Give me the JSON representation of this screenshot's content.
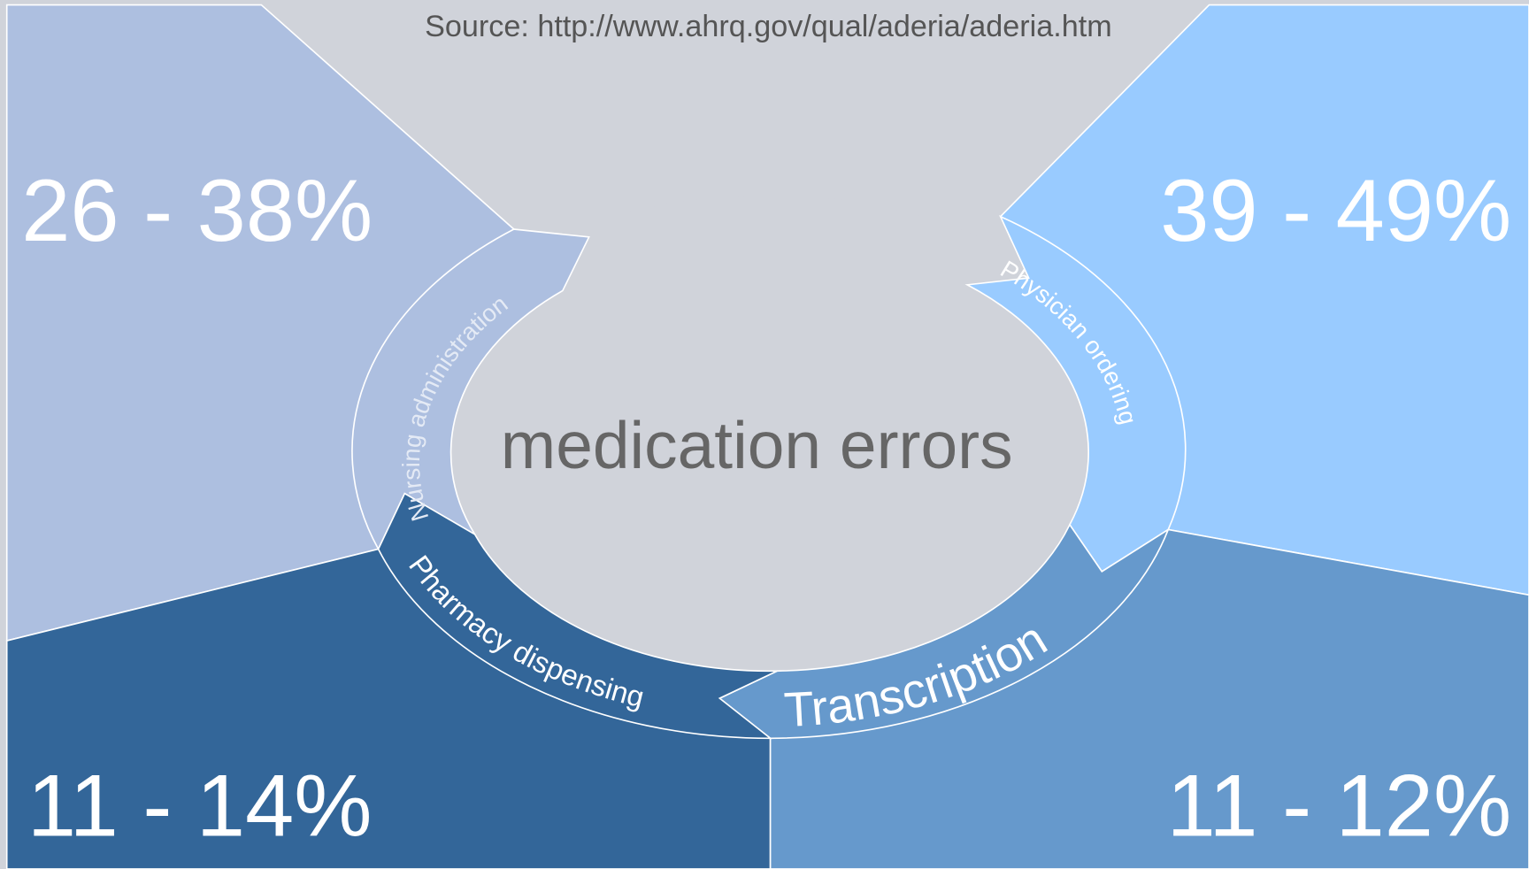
{
  "source": "Source: http://www.ahrq.gov/qual/aderia/aderia.htm",
  "center": "medication errors",
  "stages": [
    {
      "label": "Physician ordering",
      "share": "39 - 49%"
    },
    {
      "label": "Transcription",
      "share": "11 - 12%"
    },
    {
      "label": "Pharmacy dispensing",
      "share": "11 - 14%"
    },
    {
      "label": "Nursing administration",
      "share": "26 - 38%"
    }
  ]
}
